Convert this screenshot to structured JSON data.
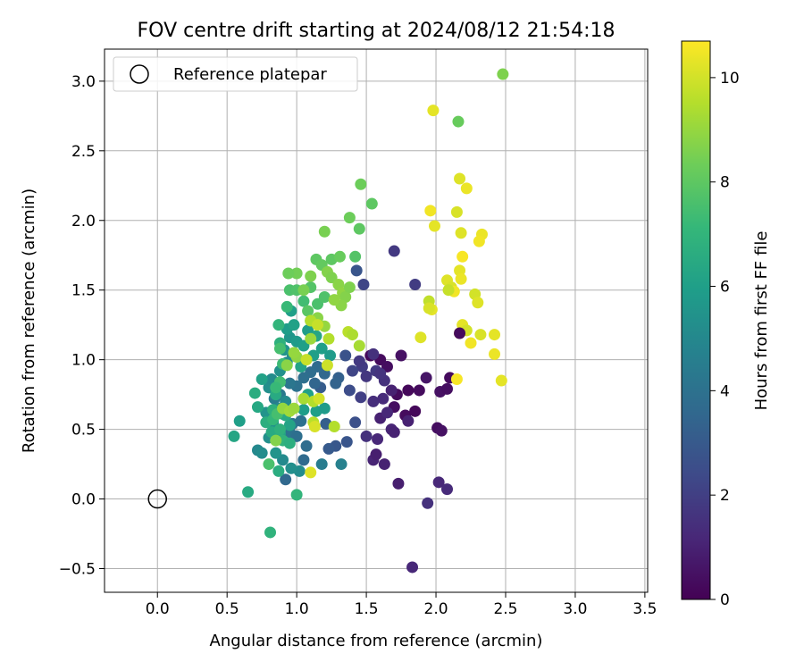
{
  "chart_data": {
    "type": "scatter",
    "title": "FOV centre drift starting at 2024/08/12 21:54:18",
    "xlabel": "Angular distance from reference (arcmin)",
    "ylabel": "Rotation from reference (arcmin)",
    "xlim": [
      -0.38,
      3.52
    ],
    "ylim": [
      -0.67,
      3.23
    ],
    "xticks": [
      0.0,
      0.5,
      1.0,
      1.5,
      2.0,
      2.5,
      3.0,
      3.5
    ],
    "xtick_labels": [
      "0.0",
      "0.5",
      "1.0",
      "1.5",
      "2.0",
      "2.5",
      "3.0",
      "3.5"
    ],
    "yticks": [
      -0.5,
      0.0,
      0.5,
      1.0,
      1.5,
      2.0,
      2.5,
      3.0
    ],
    "ytick_labels": [
      "−0.5",
      "0.0",
      "0.5",
      "1.0",
      "1.5",
      "2.0",
      "2.5",
      "3.0"
    ],
    "grid": true,
    "legend": {
      "position": "top-left",
      "label": "Reference platepar"
    },
    "reference_point": {
      "x": 0.0,
      "y": 0.0
    },
    "colorbar": {
      "label": "Hours from first FF file",
      "min": 0,
      "max": 10.7,
      "colormap": "viridis",
      "ticks": [
        0,
        2,
        4,
        6,
        8,
        10
      ],
      "tick_labels": [
        "0",
        "2",
        "4",
        "6",
        "8",
        "10"
      ]
    },
    "points": [
      {
        "x": 1.53,
        "y": 1.03,
        "c": 0.2
      },
      {
        "x": 1.6,
        "y": 1.0,
        "c": 0.3
      },
      {
        "x": 1.65,
        "y": 0.95,
        "c": 0.4
      },
      {
        "x": 1.72,
        "y": 0.75,
        "c": 0.3
      },
      {
        "x": 1.8,
        "y": 0.78,
        "c": 0.2
      },
      {
        "x": 1.88,
        "y": 0.78,
        "c": 0.3
      },
      {
        "x": 1.7,
        "y": 0.66,
        "c": 0.4
      },
      {
        "x": 1.78,
        "y": 0.6,
        "c": 0.3
      },
      {
        "x": 1.85,
        "y": 0.63,
        "c": 0.2
      },
      {
        "x": 1.75,
        "y": 1.03,
        "c": 0.5
      },
      {
        "x": 1.93,
        "y": 0.87,
        "c": 0.6
      },
      {
        "x": 2.03,
        "y": 0.77,
        "c": 0.5
      },
      {
        "x": 2.08,
        "y": 0.79,
        "c": 0.4
      },
      {
        "x": 2.1,
        "y": 0.87,
        "c": 0.3
      },
      {
        "x": 2.01,
        "y": 0.51,
        "c": 0.4
      },
      {
        "x": 2.04,
        "y": 0.49,
        "c": 0.5
      },
      {
        "x": 2.02,
        "y": 0.12,
        "c": 1.2
      },
      {
        "x": 2.08,
        "y": 0.07,
        "c": 1.3
      },
      {
        "x": 1.94,
        "y": -0.03,
        "c": 1.5
      },
      {
        "x": 1.83,
        "y": -0.49,
        "c": 1.2
      },
      {
        "x": 1.73,
        "y": 0.11,
        "c": 0.9
      },
      {
        "x": 1.63,
        "y": 0.25,
        "c": 1.0
      },
      {
        "x": 1.55,
        "y": 0.28,
        "c": 1.1
      },
      {
        "x": 1.57,
        "y": 0.32,
        "c": 0.9
      },
      {
        "x": 1.5,
        "y": 0.45,
        "c": 1.5
      },
      {
        "x": 1.58,
        "y": 0.43,
        "c": 1.2
      },
      {
        "x": 1.68,
        "y": 0.5,
        "c": 1.1
      },
      {
        "x": 1.7,
        "y": 0.48,
        "c": 1.0
      },
      {
        "x": 1.8,
        "y": 0.56,
        "c": 1.0
      },
      {
        "x": 1.6,
        "y": 0.58,
        "c": 1.0
      },
      {
        "x": 1.65,
        "y": 0.62,
        "c": 1.2
      },
      {
        "x": 1.55,
        "y": 0.7,
        "c": 1.4
      },
      {
        "x": 1.62,
        "y": 0.72,
        "c": 1.3
      },
      {
        "x": 1.68,
        "y": 0.78,
        "c": 1.0
      },
      {
        "x": 1.63,
        "y": 0.85,
        "c": 1.5
      },
      {
        "x": 1.57,
        "y": 0.92,
        "c": 1.8
      },
      {
        "x": 1.47,
        "y": 0.95,
        "c": 1.9
      },
      {
        "x": 1.5,
        "y": 0.88,
        "c": 1.7
      },
      {
        "x": 1.46,
        "y": 0.73,
        "c": 2.0
      },
      {
        "x": 1.4,
        "y": 0.92,
        "c": 2.2
      },
      {
        "x": 1.45,
        "y": 0.99,
        "c": 1.8
      },
      {
        "x": 1.55,
        "y": 1.04,
        "c": 1.5
      },
      {
        "x": 1.6,
        "y": 0.9,
        "c": 1.6
      },
      {
        "x": 1.7,
        "y": 1.78,
        "c": 1.8
      },
      {
        "x": 1.85,
        "y": 1.54,
        "c": 1.9
      },
      {
        "x": 1.43,
        "y": 1.64,
        "c": 2.8
      },
      {
        "x": 1.48,
        "y": 1.54,
        "c": 2.2
      },
      {
        "x": 1.35,
        "y": 1.03,
        "c": 2.7
      },
      {
        "x": 1.38,
        "y": 0.78,
        "c": 2.5
      },
      {
        "x": 1.42,
        "y": 0.55,
        "c": 2.6
      },
      {
        "x": 1.36,
        "y": 0.41,
        "c": 2.8
      },
      {
        "x": 1.28,
        "y": 0.38,
        "c": 2.9
      },
      {
        "x": 1.23,
        "y": 0.36,
        "c": 3.0
      },
      {
        "x": 1.17,
        "y": 0.8,
        "c": 3.1
      },
      {
        "x": 1.21,
        "y": 0.54,
        "c": 3.2
      },
      {
        "x": 1.3,
        "y": 0.87,
        "c": 3.3
      },
      {
        "x": 1.28,
        "y": 0.83,
        "c": 3.4
      },
      {
        "x": 1.13,
        "y": 0.83,
        "c": 3.5
      },
      {
        "x": 1.2,
        "y": 0.9,
        "c": 3.6
      },
      {
        "x": 1.15,
        "y": 0.95,
        "c": 3.7
      },
      {
        "x": 1.1,
        "y": 0.91,
        "c": 3.8
      },
      {
        "x": 1.05,
        "y": 0.87,
        "c": 3.9
      },
      {
        "x": 1.0,
        "y": 0.81,
        "c": 4.0
      },
      {
        "x": 0.95,
        "y": 0.83,
        "c": 4.2
      },
      {
        "x": 0.88,
        "y": 0.75,
        "c": 4.3
      },
      {
        "x": 0.84,
        "y": 0.72,
        "c": 4.5
      },
      {
        "x": 0.9,
        "y": 0.61,
        "c": 4.6
      },
      {
        "x": 0.97,
        "y": 0.54,
        "c": 4.2
      },
      {
        "x": 1.03,
        "y": 0.56,
        "c": 4.0
      },
      {
        "x": 0.95,
        "y": 0.48,
        "c": 4.1
      },
      {
        "x": 1.0,
        "y": 0.45,
        "c": 3.9
      },
      {
        "x": 1.07,
        "y": 0.38,
        "c": 3.8
      },
      {
        "x": 1.05,
        "y": 0.28,
        "c": 3.7
      },
      {
        "x": 0.92,
        "y": 0.14,
        "c": 3.6
      },
      {
        "x": 1.18,
        "y": 0.25,
        "c": 4.5
      },
      {
        "x": 1.32,
        "y": 0.25,
        "c": 4.7
      },
      {
        "x": 1.02,
        "y": 0.2,
        "c": 5.2
      },
      {
        "x": 0.96,
        "y": 0.22,
        "c": 5.3
      },
      {
        "x": 0.9,
        "y": 0.28,
        "c": 5.1
      },
      {
        "x": 0.85,
        "y": 0.33,
        "c": 5.5
      },
      {
        "x": 0.72,
        "y": 0.35,
        "c": 5.0
      },
      {
        "x": 0.75,
        "y": 0.33,
        "c": 5.2
      },
      {
        "x": 0.8,
        "y": 0.44,
        "c": 5.3
      },
      {
        "x": 0.83,
        "y": 0.55,
        "c": 5.4
      },
      {
        "x": 0.78,
        "y": 0.62,
        "c": 5.5
      },
      {
        "x": 0.87,
        "y": 0.65,
        "c": 5.0
      },
      {
        "x": 0.92,
        "y": 0.7,
        "c": 5.1
      },
      {
        "x": 0.8,
        "y": 0.8,
        "c": 5.3
      },
      {
        "x": 0.82,
        "y": 0.86,
        "c": 5.2
      },
      {
        "x": 0.88,
        "y": 0.92,
        "c": 5.4
      },
      {
        "x": 0.93,
        "y": 0.98,
        "c": 5.0
      },
      {
        "x": 0.97,
        "y": 1.03,
        "c": 5.2
      },
      {
        "x": 0.91,
        "y": 1.07,
        "c": 5.5
      },
      {
        "x": 0.95,
        "y": 1.16,
        "c": 5.6
      },
      {
        "x": 1.0,
        "y": 1.13,
        "c": 5.8
      },
      {
        "x": 1.05,
        "y": 1.1,
        "c": 6.0
      },
      {
        "x": 0.93,
        "y": 1.22,
        "c": 5.9
      },
      {
        "x": 0.96,
        "y": 1.35,
        "c": 6.0
      },
      {
        "x": 0.98,
        "y": 1.25,
        "c": 6.1
      },
      {
        "x": 1.1,
        "y": 1.28,
        "c": 6.2
      },
      {
        "x": 1.08,
        "y": 1.21,
        "c": 5.9
      },
      {
        "x": 1.14,
        "y": 1.17,
        "c": 6.3
      },
      {
        "x": 1.18,
        "y": 1.08,
        "c": 6.0
      },
      {
        "x": 1.24,
        "y": 1.03,
        "c": 5.8
      },
      {
        "x": 1.12,
        "y": 1.03,
        "c": 6.0
      },
      {
        "x": 1.03,
        "y": 0.95,
        "c": 6.2
      },
      {
        "x": 1.08,
        "y": 0.75,
        "c": 6.1
      },
      {
        "x": 1.14,
        "y": 0.63,
        "c": 6.0
      },
      {
        "x": 1.2,
        "y": 0.65,
        "c": 5.8
      },
      {
        "x": 1.05,
        "y": 0.64,
        "c": 5.9
      },
      {
        "x": 0.95,
        "y": 0.53,
        "c": 6.2
      },
      {
        "x": 0.88,
        "y": 0.47,
        "c": 6.3
      },
      {
        "x": 0.82,
        "y": 0.48,
        "c": 6.5
      },
      {
        "x": 0.55,
        "y": 0.45,
        "c": 6.3
      },
      {
        "x": 0.59,
        "y": 0.56,
        "c": 6.0
      },
      {
        "x": 0.72,
        "y": 0.66,
        "c": 6.4
      },
      {
        "x": 0.7,
        "y": 0.76,
        "c": 6.6
      },
      {
        "x": 0.75,
        "y": 0.86,
        "c": 6.1
      },
      {
        "x": 0.85,
        "y": 0.75,
        "c": 6.5
      },
      {
        "x": 0.92,
        "y": 0.6,
        "c": 6.5
      },
      {
        "x": 0.83,
        "y": 0.64,
        "c": 6.8
      },
      {
        "x": 0.78,
        "y": 0.55,
        "c": 6.7
      },
      {
        "x": 0.88,
        "y": 0.5,
        "c": 6.8
      },
      {
        "x": 0.9,
        "y": 0.42,
        "c": 6.9
      },
      {
        "x": 0.95,
        "y": 0.4,
        "c": 6.7
      },
      {
        "x": 0.87,
        "y": 0.2,
        "c": 6.6
      },
      {
        "x": 0.65,
        "y": 0.05,
        "c": 6.5
      },
      {
        "x": 1.0,
        "y": 0.03,
        "c": 7.0
      },
      {
        "x": 0.81,
        "y": -0.24,
        "c": 6.9
      },
      {
        "x": 0.88,
        "y": 1.12,
        "c": 6.8
      },
      {
        "x": 0.87,
        "y": 1.25,
        "c": 7.0
      },
      {
        "x": 0.93,
        "y": 1.38,
        "c": 7.2
      },
      {
        "x": 0.9,
        "y": 0.97,
        "c": 7.3
      },
      {
        "x": 0.88,
        "y": 0.84,
        "c": 7.4
      },
      {
        "x": 0.85,
        "y": 0.8,
        "c": 7.2
      },
      {
        "x": 0.83,
        "y": 0.57,
        "c": 7.1
      },
      {
        "x": 0.86,
        "y": 0.61,
        "c": 7.5
      },
      {
        "x": 0.8,
        "y": 0.25,
        "c": 7.6
      },
      {
        "x": 0.88,
        "y": 1.08,
        "c": 7.5
      },
      {
        "x": 0.95,
        "y": 1.5,
        "c": 7.6
      },
      {
        "x": 1.0,
        "y": 1.5,
        "c": 7.7
      },
      {
        "x": 1.05,
        "y": 1.42,
        "c": 7.4
      },
      {
        "x": 1.1,
        "y": 1.52,
        "c": 7.8
      },
      {
        "x": 1.08,
        "y": 1.35,
        "c": 7.9
      },
      {
        "x": 1.15,
        "y": 1.4,
        "c": 7.6
      },
      {
        "x": 1.2,
        "y": 1.45,
        "c": 7.7
      },
      {
        "x": 1.14,
        "y": 1.72,
        "c": 8.0
      },
      {
        "x": 1.18,
        "y": 1.68,
        "c": 8.1
      },
      {
        "x": 1.25,
        "y": 1.72,
        "c": 8.0
      },
      {
        "x": 1.31,
        "y": 1.74,
        "c": 8.2
      },
      {
        "x": 1.38,
        "y": 2.02,
        "c": 8.3
      },
      {
        "x": 1.42,
        "y": 1.74,
        "c": 7.8
      },
      {
        "x": 1.45,
        "y": 1.94,
        "c": 8.0
      },
      {
        "x": 1.46,
        "y": 2.26,
        "c": 8.3
      },
      {
        "x": 1.54,
        "y": 2.12,
        "c": 8.0
      },
      {
        "x": 1.2,
        "y": 1.92,
        "c": 8.5
      },
      {
        "x": 1.22,
        "y": 1.63,
        "c": 8.7
      },
      {
        "x": 1.25,
        "y": 1.59,
        "c": 8.6
      },
      {
        "x": 1.3,
        "y": 1.54,
        "c": 8.8
      },
      {
        "x": 1.33,
        "y": 1.48,
        "c": 8.9
      },
      {
        "x": 1.35,
        "y": 1.45,
        "c": 8.7
      },
      {
        "x": 1.38,
        "y": 1.52,
        "c": 8.6
      },
      {
        "x": 1.32,
        "y": 1.39,
        "c": 8.8
      },
      {
        "x": 1.27,
        "y": 1.43,
        "c": 8.9
      },
      {
        "x": 1.0,
        "y": 1.62,
        "c": 8.4
      },
      {
        "x": 0.94,
        "y": 1.62,
        "c": 8.3
      },
      {
        "x": 1.05,
        "y": 1.5,
        "c": 8.5
      },
      {
        "x": 1.1,
        "y": 1.6,
        "c": 8.6
      },
      {
        "x": 1.15,
        "y": 1.3,
        "c": 8.8
      },
      {
        "x": 1.2,
        "y": 1.24,
        "c": 9.0
      },
      {
        "x": 1.1,
        "y": 1.15,
        "c": 9.1
      },
      {
        "x": 1.0,
        "y": 1.02,
        "c": 8.9
      },
      {
        "x": 0.98,
        "y": 1.05,
        "c": 9.0
      },
      {
        "x": 0.93,
        "y": 0.96,
        "c": 8.8
      },
      {
        "x": 0.9,
        "y": 0.65,
        "c": 9.0
      },
      {
        "x": 0.95,
        "y": 0.63,
        "c": 9.2
      },
      {
        "x": 0.98,
        "y": 0.65,
        "c": 9.1
      },
      {
        "x": 0.85,
        "y": 0.42,
        "c": 8.7
      },
      {
        "x": 1.05,
        "y": 0.72,
        "c": 9.3
      },
      {
        "x": 1.12,
        "y": 0.7,
        "c": 9.5
      },
      {
        "x": 1.27,
        "y": 0.52,
        "c": 9.5
      },
      {
        "x": 1.07,
        "y": 1.0,
        "c": 9.8
      },
      {
        "x": 1.22,
        "y": 0.96,
        "c": 9.9
      },
      {
        "x": 1.37,
        "y": 1.2,
        "c": 9.6
      },
      {
        "x": 1.4,
        "y": 1.18,
        "c": 9.4
      },
      {
        "x": 1.45,
        "y": 1.1,
        "c": 9.3
      },
      {
        "x": 1.1,
        "y": 1.28,
        "c": 9.5
      },
      {
        "x": 1.15,
        "y": 1.25,
        "c": 9.8
      },
      {
        "x": 1.12,
        "y": 0.55,
        "c": 9.6
      },
      {
        "x": 1.23,
        "y": 1.15,
        "c": 9.5
      },
      {
        "x": 1.16,
        "y": 0.72,
        "c": 10.0
      },
      {
        "x": 1.13,
        "y": 0.52,
        "c": 10.1
      },
      {
        "x": 1.1,
        "y": 0.19,
        "c": 10.2
      },
      {
        "x": 1.98,
        "y": 2.79,
        "c": 10.3
      },
      {
        "x": 2.16,
        "y": 2.71,
        "c": 8.2
      },
      {
        "x": 2.48,
        "y": 3.05,
        "c": 8.6
      },
      {
        "x": 2.17,
        "y": 2.3,
        "c": 10.2
      },
      {
        "x": 2.22,
        "y": 2.23,
        "c": 10.4
      },
      {
        "x": 1.96,
        "y": 2.07,
        "c": 10.5
      },
      {
        "x": 1.99,
        "y": 1.96,
        "c": 10.3
      },
      {
        "x": 2.15,
        "y": 2.06,
        "c": 10.1
      },
      {
        "x": 2.18,
        "y": 1.91,
        "c": 10.2
      },
      {
        "x": 2.33,
        "y": 1.9,
        "c": 10.4
      },
      {
        "x": 2.31,
        "y": 1.85,
        "c": 10.5
      },
      {
        "x": 2.19,
        "y": 1.74,
        "c": 10.6
      },
      {
        "x": 2.17,
        "y": 1.64,
        "c": 10.3
      },
      {
        "x": 2.08,
        "y": 1.57,
        "c": 10.2
      },
      {
        "x": 2.18,
        "y": 1.58,
        "c": 10.4
      },
      {
        "x": 2.11,
        "y": 1.52,
        "c": 10.1
      },
      {
        "x": 2.13,
        "y": 1.49,
        "c": 10.5
      },
      {
        "x": 2.09,
        "y": 1.5,
        "c": 9.8
      },
      {
        "x": 2.28,
        "y": 1.47,
        "c": 10.0
      },
      {
        "x": 2.3,
        "y": 1.41,
        "c": 10.2
      },
      {
        "x": 1.95,
        "y": 1.42,
        "c": 9.7
      },
      {
        "x": 1.97,
        "y": 1.36,
        "c": 10.3
      },
      {
        "x": 1.95,
        "y": 1.37,
        "c": 10.1
      },
      {
        "x": 2.19,
        "y": 1.25,
        "c": 10.3
      },
      {
        "x": 2.22,
        "y": 1.21,
        "c": 10.0
      },
      {
        "x": 2.17,
        "y": 1.19,
        "c": 10.4
      },
      {
        "x": 2.32,
        "y": 1.18,
        "c": 10.1
      },
      {
        "x": 2.42,
        "y": 1.18,
        "c": 10.3
      },
      {
        "x": 2.25,
        "y": 1.12,
        "c": 10.5
      },
      {
        "x": 2.42,
        "y": 1.04,
        "c": 10.4
      },
      {
        "x": 1.89,
        "y": 1.16,
        "c": 10.2
      },
      {
        "x": 2.15,
        "y": 0.86,
        "c": 10.6
      },
      {
        "x": 2.47,
        "y": 0.85,
        "c": 10.3
      },
      {
        "x": 2.17,
        "y": 1.19,
        "c": 0.3
      }
    ]
  }
}
